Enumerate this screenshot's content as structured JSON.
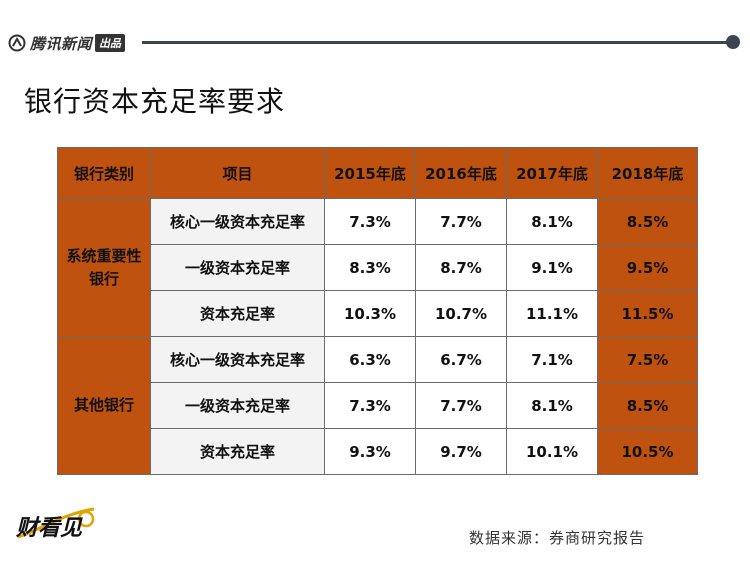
{
  "header": {
    "brand": "腾讯新闻",
    "badge": "出品"
  },
  "title": "银行资本充足率要求",
  "table": {
    "headers": [
      "银行类别",
      "项目",
      "2015年底",
      "2016年底",
      "2017年底",
      "2018年底"
    ],
    "groups": [
      {
        "type": "系统重要性银行",
        "rows": [
          {
            "item": "核心一级资本充足率",
            "values": [
              "7.3%",
              "7.7%",
              "8.1%",
              "8.5%"
            ]
          },
          {
            "item": "一级资本充足率",
            "values": [
              "8.3%",
              "8.7%",
              "9.1%",
              "9.5%"
            ]
          },
          {
            "item": "资本充足率",
            "values": [
              "10.3%",
              "10.7%",
              "11.1%",
              "11.5%"
            ]
          }
        ]
      },
      {
        "type": "其他银行",
        "rows": [
          {
            "item": "核心一级资本充足率",
            "values": [
              "6.3%",
              "6.7%",
              "7.1%",
              "7.5%"
            ]
          },
          {
            "item": "一级资本充足率",
            "values": [
              "7.3%",
              "7.7%",
              "8.1%",
              "8.5%"
            ]
          },
          {
            "item": "资本充足率",
            "values": [
              "9.3%",
              "9.7%",
              "10.1%",
              "10.5%"
            ]
          }
        ]
      }
    ]
  },
  "footer": {
    "logo": "财看见",
    "source": "数据来源：券商研究报告"
  },
  "colors": {
    "accent": "#c0520f",
    "rule": "#3e4450"
  }
}
